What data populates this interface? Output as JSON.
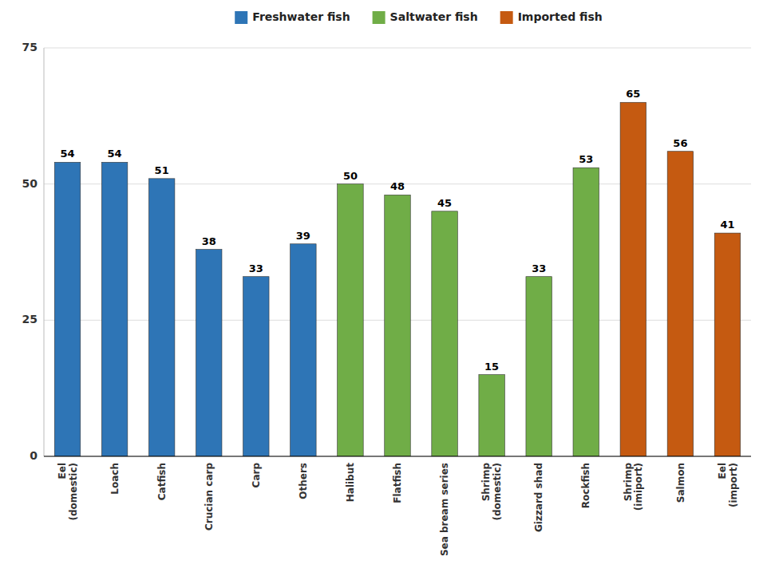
{
  "chart_data": {
    "type": "bar",
    "categories": [
      "Eel\n(domestic)",
      "Loach",
      "Catfish",
      "Crucian carp",
      "Carp",
      "Others",
      "Halibut",
      "Flatfish",
      "Sea bream series",
      "Shrimp\n(domestic)",
      "Gizzard shad",
      "Rockfish",
      "Shrimp\n(imiport)",
      "Salmon",
      "Eel\n(import)"
    ],
    "series": [
      {
        "name": "Freshwater fish",
        "color": "#2E75B6",
        "values": [
          54,
          54,
          51,
          38,
          33,
          39,
          null,
          null,
          null,
          null,
          null,
          null,
          null,
          null,
          null
        ]
      },
      {
        "name": "Saltwater fish",
        "color": "#70AD47",
        "values": [
          null,
          null,
          null,
          null,
          null,
          null,
          50,
          48,
          45,
          15,
          33,
          53,
          null,
          null,
          null
        ]
      },
      {
        "name": "Imported fish",
        "color": "#C55A11",
        "values": [
          null,
          null,
          null,
          null,
          null,
          null,
          null,
          null,
          null,
          null,
          null,
          null,
          65,
          56,
          41
        ]
      }
    ],
    "stacked": true,
    "ylim": [
      0,
      75
    ],
    "yticks": [
      0,
      25,
      50,
      75
    ],
    "grid": true,
    "legend": "top",
    "data_labels": true
  }
}
